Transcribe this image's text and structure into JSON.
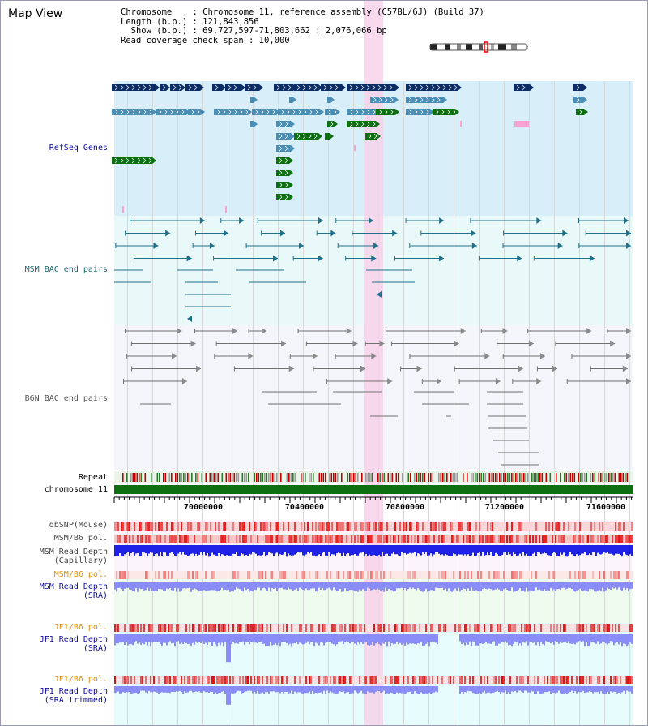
{
  "header": {
    "title": "Map View",
    "info_lines": [
      "Chromosome    : Chromosome 11, reference assembly (C57BL/6J) (Build 37)",
      "Length (b.p.) : 121,843,856",
      "  Show (b.p.) : 69,727,597-71,803,662 : 2,076,066 bp",
      "Read coverage check span : 10,000"
    ]
  },
  "tracks": {
    "refseq": "RefSeq Genes",
    "msm_bac": "MSM BAC end pairs",
    "b6n_bac": "B6N BAC end pairs",
    "repeat": "Repeat",
    "chromosome": "chromosome 11",
    "dbsnp": "dbSNP(Mouse)",
    "msm_b6_pol": "MSM/B6 pol.",
    "msm_depth_cap_1": "MSM Read Depth",
    "msm_depth_cap_2": "(Capillary)",
    "msm_b6_pol_2": "MSM/B6 pol.",
    "msm_depth_sra_1": "MSM Read Depth",
    "msm_depth_sra_2": "(SRA)",
    "jf1_b6_pol": "JF1/B6 pol.",
    "jf1_depth_sra_1": "JF1 Read Depth",
    "jf1_depth_sra_2": "(SRA)",
    "jf1_b6_pol_2": "JF1/B6 pol.",
    "jf1_depth_trim_1": "JF1 Read Depth",
    "jf1_depth_trim_2": "(SRA trimmed)"
  },
  "axis": {
    "start": 69727597,
    "end": 71803662,
    "ticks": [
      "70000000",
      "70400000",
      "70800000",
      "71200000",
      "71600000"
    ]
  },
  "colors": {
    "refseq_bg": "#d8eff9",
    "msm_bg": "#e9f9f9",
    "b6n_bg": "#f4f4fb",
    "highlight": "#f7cfe9",
    "gene_navy": "#0c2d63",
    "gene_blue": "#4a8db5",
    "gene_green": "#0d6e12",
    "msm_line": "#20708a",
    "b6n_line": "#707070",
    "chrom_bar": "#0d6e12",
    "depth_blue": "#1e22e6",
    "depth_light": "#8a8cf7",
    "label_blue": "#0a0aa8",
    "label_teal": "#1a6670",
    "label_orange": "#e3900c"
  }
}
